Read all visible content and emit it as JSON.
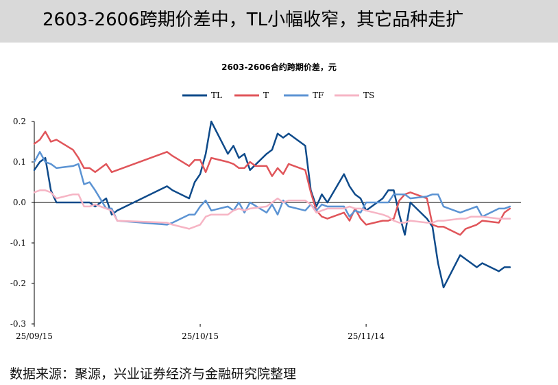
{
  "header": {
    "title": "2603-2606跨期价差中，TL小幅收窄，其它品种走扩"
  },
  "footer": {
    "source": "数据来源：聚源，兴业证券经济与金融研究院整理"
  },
  "chart_data": {
    "type": "line",
    "title": "2603-2606合约跨期价差，元",
    "xlabel": "",
    "ylabel": "",
    "ylim": [
      -0.3,
      0.2
    ],
    "yticks": [
      0.2,
      0.1,
      0.0,
      -0.1,
      -0.2,
      -0.3
    ],
    "ytick_labels": [
      "0.2",
      "0.1",
      "0.0",
      "-0.1",
      "-0.2",
      "-0.3"
    ],
    "x_range": [
      "2025-09-15",
      "2025-12-12"
    ],
    "xtick_labels": [
      {
        "date": "2025-09-15",
        "label": "25/09/15"
      },
      {
        "date": "2025-10-15",
        "label": "25/10/15"
      },
      {
        "date": "2025-11-14",
        "label": "25/11/14"
      }
    ],
    "grid": false,
    "legend_position": "top",
    "series": [
      {
        "name": "TL",
        "color": "#0e4a8a",
        "points": [
          [
            "2025-09-15",
            0.08
          ],
          [
            "2025-09-16",
            0.1
          ],
          [
            "2025-09-17",
            0.11
          ],
          [
            "2025-09-18",
            0.03
          ],
          [
            "2025-09-19",
            0.0
          ],
          [
            "2025-09-22",
            0.0
          ],
          [
            "2025-09-23",
            0.0
          ],
          [
            "2025-09-24",
            0.0
          ],
          [
            "2025-09-25",
            0.0
          ],
          [
            "2025-09-26",
            -0.01
          ],
          [
            "2025-09-28",
            0.01
          ],
          [
            "2025-09-29",
            -0.03
          ],
          [
            "2025-09-30",
            -0.02
          ],
          [
            "2025-10-09",
            0.04
          ],
          [
            "2025-10-10",
            0.03
          ],
          [
            "2025-10-13",
            0.01
          ],
          [
            "2025-10-14",
            0.05
          ],
          [
            "2025-10-15",
            0.07
          ],
          [
            "2025-10-16",
            0.12
          ],
          [
            "2025-10-17",
            0.2
          ],
          [
            "2025-10-20",
            0.12
          ],
          [
            "2025-10-21",
            0.14
          ],
          [
            "2025-10-22",
            0.11
          ],
          [
            "2025-10-23",
            0.12
          ],
          [
            "2025-10-24",
            0.08
          ],
          [
            "2025-10-27",
            0.12
          ],
          [
            "2025-10-28",
            0.13
          ],
          [
            "2025-10-29",
            0.17
          ],
          [
            "2025-10-30",
            0.16
          ],
          [
            "2025-10-31",
            0.17
          ],
          [
            "2025-11-03",
            0.14
          ],
          [
            "2025-11-04",
            0.03
          ],
          [
            "2025-11-05",
            -0.01
          ],
          [
            "2025-11-06",
            0.02
          ],
          [
            "2025-11-07",
            0.0
          ],
          [
            "2025-11-10",
            0.07
          ],
          [
            "2025-11-11",
            0.04
          ],
          [
            "2025-11-12",
            0.02
          ],
          [
            "2025-11-13",
            0.01
          ],
          [
            "2025-11-14",
            -0.02
          ],
          [
            "2025-11-17",
            0.01
          ],
          [
            "2025-11-18",
            0.03
          ],
          [
            "2025-11-19",
            0.03
          ],
          [
            "2025-11-20",
            -0.03
          ],
          [
            "2025-11-21",
            -0.08
          ],
          [
            "2025-11-22",
            0.0
          ],
          [
            "2025-11-25",
            -0.04
          ],
          [
            "2025-11-26",
            -0.06
          ],
          [
            "2025-11-27",
            -0.15
          ],
          [
            "2025-11-28",
            -0.21
          ],
          [
            "2025-12-01",
            -0.13
          ],
          [
            "2025-12-02",
            -0.14
          ],
          [
            "2025-12-03",
            -0.15
          ],
          [
            "2025-12-04",
            -0.16
          ],
          [
            "2025-12-05",
            -0.15
          ],
          [
            "2025-12-08",
            -0.17
          ],
          [
            "2025-12-09",
            -0.16
          ],
          [
            "2025-12-10",
            -0.16
          ]
        ]
      },
      {
        "name": "T",
        "color": "#e0555a",
        "points": [
          [
            "2025-09-15",
            0.145
          ],
          [
            "2025-09-16",
            0.155
          ],
          [
            "2025-09-17",
            0.175
          ],
          [
            "2025-09-18",
            0.15
          ],
          [
            "2025-09-19",
            0.155
          ],
          [
            "2025-09-22",
            0.13
          ],
          [
            "2025-09-23",
            0.11
          ],
          [
            "2025-09-24",
            0.085
          ],
          [
            "2025-09-25",
            0.085
          ],
          [
            "2025-09-26",
            0.075
          ],
          [
            "2025-09-28",
            0.095
          ],
          [
            "2025-09-29",
            0.075
          ],
          [
            "2025-10-09",
            0.125
          ],
          [
            "2025-10-10",
            0.115
          ],
          [
            "2025-10-13",
            0.09
          ],
          [
            "2025-10-14",
            0.105
          ],
          [
            "2025-10-15",
            0.105
          ],
          [
            "2025-10-16",
            0.075
          ],
          [
            "2025-10-17",
            0.11
          ],
          [
            "2025-10-20",
            0.1
          ],
          [
            "2025-10-21",
            0.095
          ],
          [
            "2025-10-22",
            0.085
          ],
          [
            "2025-10-23",
            0.085
          ],
          [
            "2025-10-24",
            0.1
          ],
          [
            "2025-10-25",
            0.09
          ],
          [
            "2025-10-27",
            0.09
          ],
          [
            "2025-10-28",
            0.065
          ],
          [
            "2025-10-29",
            0.085
          ],
          [
            "2025-10-30",
            0.07
          ],
          [
            "2025-10-31",
            0.095
          ],
          [
            "2025-11-03",
            0.08
          ],
          [
            "2025-11-04",
            0.025
          ],
          [
            "2025-11-05",
            -0.02
          ],
          [
            "2025-11-06",
            -0.035
          ],
          [
            "2025-11-07",
            -0.04
          ],
          [
            "2025-11-10",
            -0.025
          ],
          [
            "2025-11-11",
            -0.045
          ],
          [
            "2025-11-12",
            -0.015
          ],
          [
            "2025-11-13",
            -0.04
          ],
          [
            "2025-11-14",
            -0.055
          ],
          [
            "2025-11-17",
            -0.045
          ],
          [
            "2025-11-18",
            -0.045
          ],
          [
            "2025-11-19",
            -0.04
          ],
          [
            "2025-11-20",
            0.005
          ],
          [
            "2025-11-21",
            0.02
          ],
          [
            "2025-11-22",
            0.025
          ],
          [
            "2025-11-25",
            0.01
          ],
          [
            "2025-11-26",
            -0.055
          ],
          [
            "2025-11-27",
            -0.06
          ],
          [
            "2025-11-28",
            -0.06
          ],
          [
            "2025-12-01",
            -0.08
          ],
          [
            "2025-12-02",
            -0.065
          ],
          [
            "2025-12-03",
            -0.06
          ],
          [
            "2025-12-04",
            -0.055
          ],
          [
            "2025-12-05",
            -0.045
          ],
          [
            "2025-12-08",
            -0.05
          ],
          [
            "2025-12-09",
            -0.025
          ],
          [
            "2025-12-10",
            -0.015
          ]
        ]
      },
      {
        "name": "TF",
        "color": "#5b93d3",
        "points": [
          [
            "2025-09-15",
            0.1
          ],
          [
            "2025-09-16",
            0.125
          ],
          [
            "2025-09-17",
            0.1
          ],
          [
            "2025-09-18",
            0.095
          ],
          [
            "2025-09-19",
            0.085
          ],
          [
            "2025-09-22",
            0.09
          ],
          [
            "2025-09-23",
            0.095
          ],
          [
            "2025-09-24",
            0.045
          ],
          [
            "2025-09-25",
            0.05
          ],
          [
            "2025-09-26",
            0.03
          ],
          [
            "2025-09-28",
            -0.015
          ],
          [
            "2025-09-29",
            -0.015
          ],
          [
            "2025-09-30",
            -0.045
          ],
          [
            "2025-10-09",
            -0.055
          ],
          [
            "2025-10-10",
            -0.05
          ],
          [
            "2025-10-13",
            -0.03
          ],
          [
            "2025-10-14",
            -0.03
          ],
          [
            "2025-10-15",
            -0.01
          ],
          [
            "2025-10-16",
            0.005
          ],
          [
            "2025-10-17",
            -0.02
          ],
          [
            "2025-10-20",
            -0.01
          ],
          [
            "2025-10-21",
            -0.02
          ],
          [
            "2025-10-22",
            0.0
          ],
          [
            "2025-10-23",
            -0.025
          ],
          [
            "2025-10-24",
            0.0
          ],
          [
            "2025-10-27",
            -0.025
          ],
          [
            "2025-10-28",
            -0.005
          ],
          [
            "2025-10-29",
            -0.03
          ],
          [
            "2025-10-30",
            0.005
          ],
          [
            "2025-10-31",
            -0.01
          ],
          [
            "2025-11-03",
            -0.02
          ],
          [
            "2025-11-04",
            -0.005
          ],
          [
            "2025-11-05",
            -0.02
          ],
          [
            "2025-11-06",
            -0.005
          ],
          [
            "2025-11-07",
            -0.01
          ],
          [
            "2025-11-10",
            -0.01
          ],
          [
            "2025-11-11",
            -0.035
          ],
          [
            "2025-11-12",
            -0.02
          ],
          [
            "2025-11-13",
            -0.025
          ],
          [
            "2025-11-14",
            0.0
          ],
          [
            "2025-11-17",
            0.0
          ],
          [
            "2025-11-18",
            0.0
          ],
          [
            "2025-11-19",
            0.02
          ],
          [
            "2025-11-20",
            0.02
          ],
          [
            "2025-11-21",
            0.02
          ],
          [
            "2025-11-22",
            0.01
          ],
          [
            "2025-11-25",
            0.015
          ],
          [
            "2025-11-26",
            0.02
          ],
          [
            "2025-11-27",
            0.02
          ],
          [
            "2025-11-28",
            -0.01
          ],
          [
            "2025-12-01",
            -0.025
          ],
          [
            "2025-12-02",
            -0.02
          ],
          [
            "2025-12-03",
            -0.015
          ],
          [
            "2025-12-04",
            -0.01
          ],
          [
            "2025-12-05",
            -0.035
          ],
          [
            "2025-12-08",
            -0.015
          ],
          [
            "2025-12-09",
            -0.015
          ],
          [
            "2025-12-10",
            -0.01
          ]
        ]
      },
      {
        "name": "TS",
        "color": "#f6b4c4",
        "points": [
          [
            "2025-09-15",
            0.025
          ],
          [
            "2025-09-16",
            0.03
          ],
          [
            "2025-09-17",
            0.03
          ],
          [
            "2025-09-18",
            0.025
          ],
          [
            "2025-09-19",
            0.01
          ],
          [
            "2025-09-22",
            0.02
          ],
          [
            "2025-09-23",
            0.02
          ],
          [
            "2025-09-24",
            -0.01
          ],
          [
            "2025-09-25",
            -0.01
          ],
          [
            "2025-09-26",
            -0.005
          ],
          [
            "2025-09-28",
            -0.015
          ],
          [
            "2025-09-29",
            -0.02
          ],
          [
            "2025-09-30",
            -0.045
          ],
          [
            "2025-10-09",
            -0.05
          ],
          [
            "2025-10-10",
            -0.055
          ],
          [
            "2025-10-13",
            -0.065
          ],
          [
            "2025-10-14",
            -0.06
          ],
          [
            "2025-10-15",
            -0.055
          ],
          [
            "2025-10-16",
            -0.035
          ],
          [
            "2025-10-17",
            -0.03
          ],
          [
            "2025-10-20",
            -0.03
          ],
          [
            "2025-10-21",
            -0.02
          ],
          [
            "2025-10-22",
            -0.015
          ],
          [
            "2025-10-23",
            -0.02
          ],
          [
            "2025-10-24",
            -0.015
          ],
          [
            "2025-10-27",
            -0.01
          ],
          [
            "2025-10-28",
            0.0
          ],
          [
            "2025-10-29",
            0.01
          ],
          [
            "2025-10-30",
            0.0
          ],
          [
            "2025-10-31",
            0.005
          ],
          [
            "2025-11-03",
            0.005
          ],
          [
            "2025-11-04",
            -0.005
          ],
          [
            "2025-11-05",
            -0.025
          ],
          [
            "2025-11-06",
            -0.02
          ],
          [
            "2025-11-07",
            -0.015
          ],
          [
            "2025-11-10",
            -0.015
          ],
          [
            "2025-11-11",
            -0.01
          ],
          [
            "2025-11-12",
            -0.015
          ],
          [
            "2025-11-13",
            -0.015
          ],
          [
            "2025-11-14",
            -0.02
          ],
          [
            "2025-11-17",
            -0.03
          ],
          [
            "2025-11-18",
            -0.035
          ],
          [
            "2025-11-19",
            -0.045
          ],
          [
            "2025-11-20",
            -0.05
          ],
          [
            "2025-11-21",
            -0.05
          ],
          [
            "2025-11-22",
            -0.045
          ],
          [
            "2025-11-25",
            -0.05
          ],
          [
            "2025-11-26",
            -0.05
          ],
          [
            "2025-11-27",
            -0.045
          ],
          [
            "2025-11-28",
            -0.045
          ],
          [
            "2025-12-01",
            -0.04
          ],
          [
            "2025-12-02",
            -0.04
          ],
          [
            "2025-12-03",
            -0.035
          ],
          [
            "2025-12-04",
            -0.035
          ],
          [
            "2025-12-05",
            -0.035
          ],
          [
            "2025-12-08",
            -0.04
          ],
          [
            "2025-12-09",
            -0.04
          ],
          [
            "2025-12-10",
            -0.04
          ]
        ]
      }
    ]
  }
}
